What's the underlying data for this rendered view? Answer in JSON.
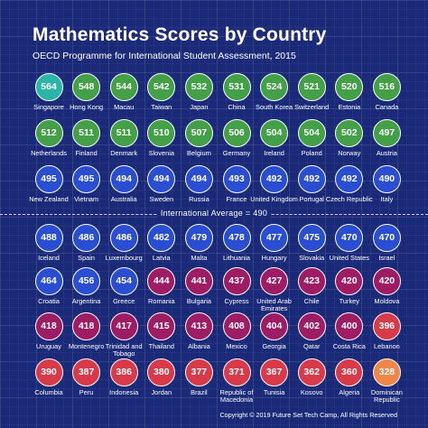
{
  "chart_data": {
    "type": "bubble-grid",
    "title": "Mathematics Scores by Country",
    "subtitle": "OECD Programme for International Student Assessment, 2015",
    "average": {
      "label": "International Average = 490",
      "value": 490
    },
    "footer": "Copyright © 2019 Future Set Tech Camp, All Rights Reserved",
    "colors": {
      "background": "#1b2a78",
      "top": "#2bb5a8",
      "above_average": "#43a047",
      "blue": "#2a4ed2",
      "magenta": "#9e1c63",
      "red": "#d93a4a",
      "lowest": "#f08648"
    },
    "countries": [
      {
        "name": "Singapore",
        "score": 564
      },
      {
        "name": "Hong Kong",
        "score": 548
      },
      {
        "name": "Macau",
        "score": 544
      },
      {
        "name": "Taiwan",
        "score": 542
      },
      {
        "name": "Japan",
        "score": 532
      },
      {
        "name": "China",
        "score": 531
      },
      {
        "name": "South Korea",
        "score": 524
      },
      {
        "name": "Switzerland",
        "score": 521
      },
      {
        "name": "Estonia",
        "score": 520
      },
      {
        "name": "Canada",
        "score": 516
      },
      {
        "name": "Netherlands",
        "score": 512
      },
      {
        "name": "Finland",
        "score": 511
      },
      {
        "name": "Denmark",
        "score": 511
      },
      {
        "name": "Slovenia",
        "score": 510
      },
      {
        "name": "Belgium",
        "score": 507
      },
      {
        "name": "Germany",
        "score": 506
      },
      {
        "name": "Ireland",
        "score": 504
      },
      {
        "name": "Poland",
        "score": 504
      },
      {
        "name": "Norway",
        "score": 502
      },
      {
        "name": "Austria",
        "score": 497
      },
      {
        "name": "New Zealand",
        "score": 495
      },
      {
        "name": "Vietnam",
        "score": 495
      },
      {
        "name": "Australia",
        "score": 494
      },
      {
        "name": "Sweden",
        "score": 494
      },
      {
        "name": "Russia",
        "score": 494
      },
      {
        "name": "France",
        "score": 493
      },
      {
        "name": "United Kingdom",
        "score": 492
      },
      {
        "name": "Portugal",
        "score": 492
      },
      {
        "name": "Czech Republic",
        "score": 492
      },
      {
        "name": "Italy",
        "score": 490
      },
      {
        "name": "Iceland",
        "score": 488
      },
      {
        "name": "Spain",
        "score": 486
      },
      {
        "name": "Luxembourg",
        "score": 486
      },
      {
        "name": "Latvia",
        "score": 482
      },
      {
        "name": "Malta",
        "score": 479
      },
      {
        "name": "Lithuania",
        "score": 478
      },
      {
        "name": "Hungary",
        "score": 477
      },
      {
        "name": "Slovakia",
        "score": 475
      },
      {
        "name": "United States",
        "score": 470
      },
      {
        "name": "Israel",
        "score": 470
      },
      {
        "name": "Croatia",
        "score": 464
      },
      {
        "name": "Argentina",
        "score": 456
      },
      {
        "name": "Greece",
        "score": 454
      },
      {
        "name": "Romania",
        "score": 444
      },
      {
        "name": "Bulgaria",
        "score": 441
      },
      {
        "name": "Cypress",
        "score": 437
      },
      {
        "name": "United Arab Emirates",
        "score": 427
      },
      {
        "name": "Chile",
        "score": 423
      },
      {
        "name": "Turkey",
        "score": 420
      },
      {
        "name": "Moldova",
        "score": 420
      },
      {
        "name": "Uruguay",
        "score": 418
      },
      {
        "name": "Montenegro",
        "score": 418
      },
      {
        "name": "Trinidad and Tobago",
        "score": 417
      },
      {
        "name": "Thailand",
        "score": 415
      },
      {
        "name": "Albania",
        "score": 413
      },
      {
        "name": "Mexico",
        "score": 408
      },
      {
        "name": "Georgia",
        "score": 404
      },
      {
        "name": "Qatar",
        "score": 402
      },
      {
        "name": "Costa Rica",
        "score": 400
      },
      {
        "name": "Lebanon",
        "score": 396
      },
      {
        "name": "Columbia",
        "score": 390
      },
      {
        "name": "Peru",
        "score": 387
      },
      {
        "name": "Indonesia",
        "score": 386
      },
      {
        "name": "Jordan",
        "score": 380
      },
      {
        "name": "Brazil",
        "score": 377
      },
      {
        "name": "Republic of Macedonia",
        "score": 371
      },
      {
        "name": "Tunisia",
        "score": 367
      },
      {
        "name": "Kosovo",
        "score": 362
      },
      {
        "name": "Algeria",
        "score": 360
      },
      {
        "name": "Dominican Republic",
        "score": 328
      }
    ]
  }
}
